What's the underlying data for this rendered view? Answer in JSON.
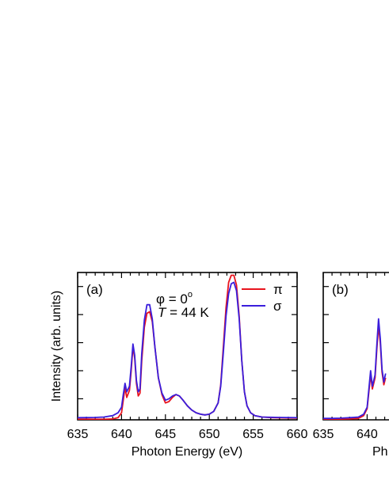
{
  "chart_data": [
    {
      "type": "line",
      "panel_label": "(a)",
      "xlabel": "Photon Energy (eV)",
      "ylabel": "Intensity (arb. units)",
      "xlim": [
        635,
        660
      ],
      "ylim": [
        0,
        1.05
      ],
      "x_ticks": [
        635,
        640,
        645,
        650,
        655,
        660
      ],
      "x_tick_labels": [
        "635",
        "640",
        "645",
        "650",
        "655",
        "660"
      ],
      "y_ticks": [
        0.15,
        0.35,
        0.55,
        0.75,
        0.95
      ],
      "y_tick_labels_shown": false,
      "annotations": {
        "phi_symbol": "φ",
        "phi_value": " = 0",
        "phi_unit": "o",
        "temp_symbol": "T",
        "temp_value": " = 44 K"
      },
      "legend_position": "top-right",
      "series": [
        {
          "name": "π",
          "color": "#e8141e",
          "x": [
            635,
            636,
            637,
            638,
            639,
            639.6,
            640,
            640.2,
            640.4,
            640.6,
            640.9,
            641.1,
            641.3,
            641.5,
            641.7,
            641.9,
            642.1,
            642.3,
            642.6,
            642.9,
            643.2,
            643.5,
            643.8,
            644.2,
            644.6,
            645,
            645.4,
            645.8,
            646.2,
            646.6,
            647,
            647.5,
            648,
            648.5,
            649,
            649.5,
            650,
            650.5,
            651,
            651.3,
            651.6,
            651.9,
            652.2,
            652.5,
            652.8,
            653.1,
            653.4,
            653.7,
            654,
            654.3,
            654.7,
            655.2,
            656,
            657,
            658,
            659,
            660
          ],
          "y": [
            0.005,
            0.005,
            0.004,
            0.004,
            0.006,
            0.015,
            0.05,
            0.14,
            0.23,
            0.16,
            0.21,
            0.35,
            0.52,
            0.44,
            0.26,
            0.17,
            0.19,
            0.42,
            0.66,
            0.76,
            0.77,
            0.7,
            0.52,
            0.3,
            0.18,
            0.12,
            0.13,
            0.16,
            0.18,
            0.17,
            0.14,
            0.1,
            0.07,
            0.05,
            0.04,
            0.035,
            0.04,
            0.06,
            0.12,
            0.25,
            0.52,
            0.8,
            0.98,
            1.03,
            1.03,
            0.96,
            0.74,
            0.42,
            0.2,
            0.1,
            0.05,
            0.03,
            0.02,
            0.016,
            0.014,
            0.013,
            0.012
          ]
        },
        {
          "name": "σ",
          "color": "#3a1edc",
          "x": [
            635,
            636,
            637,
            638,
            639,
            639.6,
            640,
            640.2,
            640.4,
            640.6,
            640.9,
            641.1,
            641.3,
            641.5,
            641.7,
            641.9,
            642.1,
            642.3,
            642.6,
            642.9,
            643.2,
            643.5,
            643.8,
            644.2,
            644.6,
            645,
            645.4,
            645.8,
            646.2,
            646.6,
            647,
            647.5,
            648,
            648.5,
            649,
            649.5,
            650,
            650.5,
            651,
            651.3,
            651.6,
            651.9,
            652.2,
            652.5,
            652.8,
            653.1,
            653.4,
            653.7,
            654,
            654.3,
            654.7,
            655.2,
            656,
            657,
            658,
            659,
            660
          ],
          "y": [
            0.015,
            0.016,
            0.017,
            0.02,
            0.03,
            0.05,
            0.09,
            0.18,
            0.26,
            0.2,
            0.24,
            0.38,
            0.54,
            0.46,
            0.28,
            0.2,
            0.22,
            0.47,
            0.71,
            0.82,
            0.82,
            0.72,
            0.52,
            0.3,
            0.19,
            0.14,
            0.15,
            0.17,
            0.18,
            0.17,
            0.14,
            0.1,
            0.07,
            0.05,
            0.04,
            0.035,
            0.04,
            0.06,
            0.12,
            0.24,
            0.48,
            0.74,
            0.9,
            0.97,
            0.98,
            0.92,
            0.72,
            0.42,
            0.2,
            0.1,
            0.05,
            0.03,
            0.02,
            0.018,
            0.017,
            0.016,
            0.015
          ]
        }
      ]
    },
    {
      "type": "line",
      "panel_label": "(b)",
      "xlabel": "Ph",
      "x_tick_labels": [
        "635",
        "640"
      ],
      "xlim": [
        635,
        660
      ],
      "ylim": [
        0,
        1.05
      ],
      "series": [
        {
          "name": "π",
          "color": "#e8141e",
          "x": [
            635,
            636,
            637,
            638,
            639,
            639.6,
            640,
            640.2,
            640.4,
            640.6,
            640.9,
            641.1,
            641.3,
            641.5,
            641.7,
            641.9,
            642.1
          ],
          "y": [
            0.005,
            0.005,
            0.005,
            0.006,
            0.01,
            0.03,
            0.08,
            0.2,
            0.32,
            0.22,
            0.3,
            0.5,
            0.67,
            0.55,
            0.34,
            0.25,
            0.3
          ]
        },
        {
          "name": "σ",
          "color": "#3a1edc",
          "x": [
            635,
            636,
            637,
            638,
            639,
            639.6,
            640,
            640.2,
            640.4,
            640.6,
            640.9,
            641.1,
            641.3,
            641.5,
            641.7,
            641.9,
            642.1
          ],
          "y": [
            0.01,
            0.01,
            0.012,
            0.015,
            0.02,
            0.04,
            0.09,
            0.22,
            0.35,
            0.24,
            0.32,
            0.53,
            0.72,
            0.58,
            0.36,
            0.27,
            0.33
          ]
        }
      ]
    }
  ]
}
